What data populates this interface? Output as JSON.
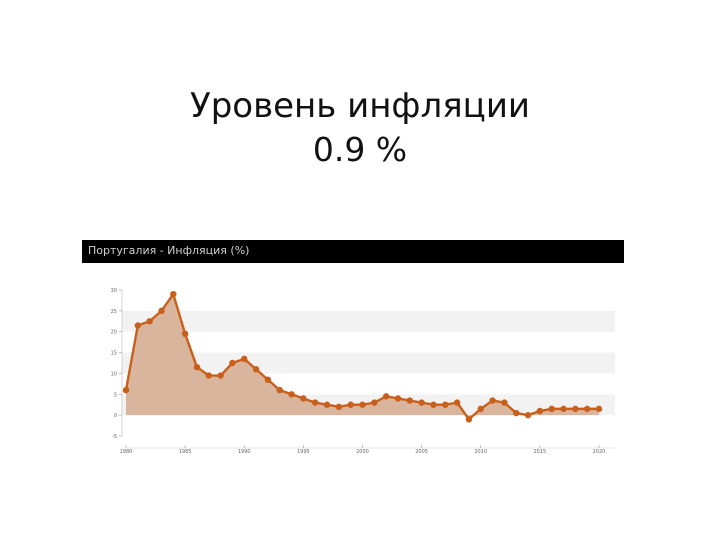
{
  "slide": {
    "title_line1": "Уровень инфляции",
    "title_line2": "0.9 %"
  },
  "chart_data": {
    "type": "area",
    "title": "Португалия - Инфляция (%)",
    "xlabel": "",
    "ylabel": "",
    "xlim": [
      1980,
      2020
    ],
    "ylim": [
      -5,
      30
    ],
    "x_ticks": [
      1980,
      1985,
      1990,
      1995,
      2000,
      2005,
      2010,
      2015,
      2020
    ],
    "y_ticks": [
      -5,
      0,
      5,
      10,
      15,
      20,
      25,
      30
    ],
    "x_tick_labels": [
      "1980",
      "1985",
      "1990",
      "1995",
      "2000",
      "2005",
      "2010",
      "2015",
      "2020"
    ],
    "y_tick_labels": [
      "-5",
      "0",
      "5",
      "10",
      "15",
      "20",
      "25",
      "30"
    ],
    "grid": "horizontal bands",
    "legend": "none",
    "colors": {
      "line": "#c8601c",
      "fill": "#d9b59e",
      "band": "#f2f2f2",
      "header_bg": "#000000",
      "header_text": "#cfcfcf"
    },
    "series": [
      {
        "x": [
          1980,
          1981,
          1982,
          1983,
          1984,
          1985,
          1986,
          1987,
          1988,
          1989,
          1990,
          1991,
          1992,
          1993,
          1994,
          1995,
          1996,
          1997,
          1998,
          1999,
          2000,
          2001,
          2002,
          2003,
          2004,
          2005,
          2006,
          2007,
          2008,
          2009,
          2010,
          2011,
          2012,
          2013,
          2014,
          2015,
          2016,
          2017,
          2018,
          2019,
          2020
        ],
        "y": [
          6.0,
          21.5,
          22.5,
          25.0,
          29.0,
          19.5,
          11.5,
          9.5,
          9.5,
          12.5,
          13.5,
          11.0,
          8.5,
          6.0,
          5.0,
          4.0,
          3.0,
          2.5,
          2.0,
          2.5,
          2.5,
          3.0,
          4.5,
          4.0,
          3.5,
          3.0,
          2.5,
          2.5,
          3.0,
          -1.0,
          1.5,
          3.5,
          3.0,
          0.5,
          0.0,
          1.0,
          1.5,
          1.5,
          1.5,
          1.5,
          1.5
        ]
      }
    ]
  }
}
